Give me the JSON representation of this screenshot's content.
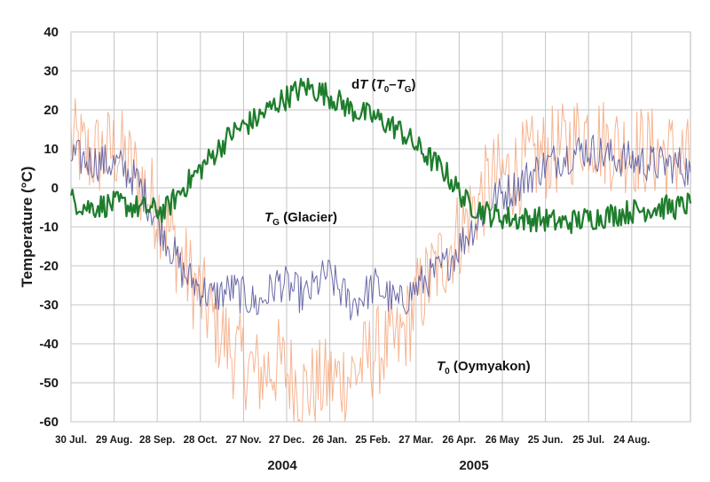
{
  "chart_data": {
    "type": "line",
    "ylabel": "Temperature (°C)",
    "ylim": [
      -60,
      40
    ],
    "yticks": [
      40,
      30,
      20,
      10,
      0,
      -10,
      -20,
      -30,
      -40,
      -50,
      -60
    ],
    "xticks": [
      "30 Jul.",
      "29 Aug.",
      "28 Sep.",
      "28 Oct.",
      "27 Nov.",
      "27 Dec.",
      "26 Jan.",
      "25 Feb.",
      "27 Mar.",
      "26 Apr.",
      "26 May",
      "25 Jun.",
      "25 Jul.",
      "24 Aug."
    ],
    "years": [
      "2004",
      "2005"
    ],
    "grid": true,
    "series": [
      {
        "name": "T0 (Oymyakon)",
        "color": "#f4a77e",
        "x": [
          "2004-07-30",
          "2004-08-10",
          "2004-08-29",
          "2004-09-10",
          "2004-09-28",
          "2004-10-10",
          "2004-10-28",
          "2004-11-10",
          "2004-11-27",
          "2004-12-10",
          "2004-12-27",
          "2005-01-10",
          "2005-01-26",
          "2005-02-10",
          "2005-02-25",
          "2005-03-10",
          "2005-03-27",
          "2005-04-10",
          "2005-04-26",
          "2005-05-10",
          "2005-05-26",
          "2005-06-10",
          "2005-06-25",
          "2005-07-10",
          "2005-07-25",
          "2005-08-10",
          "2005-08-24",
          "2005-08-31"
        ],
        "y": [
          12,
          8,
          10,
          3,
          -8,
          -20,
          -33,
          -42,
          -48,
          -45,
          -52,
          -50,
          -48,
          -42,
          -40,
          -28,
          -17,
          -8,
          2,
          4,
          8,
          10,
          15,
          11,
          10,
          9,
          8,
          6
        ]
      },
      {
        "name": "TG (Glacier)",
        "color": "#5a5a9e",
        "x": [
          "2004-07-30",
          "2004-08-10",
          "2004-08-29",
          "2004-09-10",
          "2004-09-28",
          "2004-10-10",
          "2004-10-28",
          "2004-11-10",
          "2004-11-27",
          "2004-12-10",
          "2004-12-27",
          "2005-01-10",
          "2005-01-26",
          "2005-02-10",
          "2005-02-25",
          "2005-03-10",
          "2005-03-27",
          "2005-04-10",
          "2005-04-26",
          "2005-05-10",
          "2005-05-26",
          "2005-06-10",
          "2005-06-25",
          "2005-07-10",
          "2005-07-25",
          "2005-08-10",
          "2005-08-24",
          "2005-08-31"
        ],
        "y": [
          8,
          7,
          6,
          2,
          -12,
          -22,
          -28,
          -26,
          -30,
          -24,
          -28,
          -22,
          -30,
          -25,
          -30,
          -25,
          -20,
          -12,
          -3,
          0,
          5,
          8,
          10,
          8,
          7,
          6,
          6,
          4
        ]
      },
      {
        "name": "dT (T0–TG)",
        "color": "#1e7d2c",
        "x": [
          "2004-07-30",
          "2004-08-10",
          "2004-08-29",
          "2004-09-10",
          "2004-09-28",
          "2004-10-10",
          "2004-10-28",
          "2004-11-10",
          "2004-11-27",
          "2004-12-10",
          "2004-12-27",
          "2005-01-10",
          "2005-01-26",
          "2005-02-10",
          "2005-02-25",
          "2005-03-10",
          "2005-03-27",
          "2005-04-10",
          "2005-04-26",
          "2005-05-10",
          "2005-05-26",
          "2005-06-10",
          "2005-06-25",
          "2005-07-10",
          "2005-07-25",
          "2005-08-10",
          "2005-08-24",
          "2005-08-31"
        ],
        "y": [
          -3,
          -5,
          -4,
          -5,
          -6,
          0,
          8,
          14,
          18,
          22,
          26,
          24,
          20,
          18,
          15,
          10,
          4,
          -4,
          -7,
          -8,
          -8,
          -9,
          -8,
          -7,
          -6,
          -5,
          -5,
          -4
        ]
      }
    ],
    "annotations": [
      {
        "base": "d",
        "italic": "T",
        "rest": " (",
        "it2": "T",
        "sub1": "0",
        "dash": "–",
        "it3": "T",
        "sub2": "G",
        "close": ")"
      },
      {
        "italic": "T",
        "sub": "G",
        "rest": " (Glacier)"
      },
      {
        "italic": "T",
        "sub": "0",
        "rest": " (Oymyakon)"
      }
    ]
  }
}
